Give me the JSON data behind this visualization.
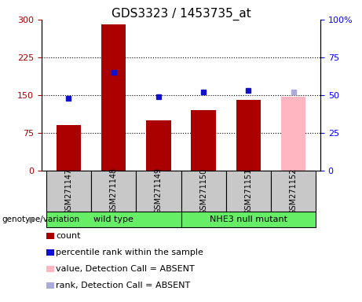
{
  "title": "GDS3323 / 1453735_at",
  "samples": [
    "GSM271147",
    "GSM271148",
    "GSM271149",
    "GSM271150",
    "GSM271151",
    "GSM271152"
  ],
  "counts": [
    90,
    290,
    100,
    120,
    140,
    147
  ],
  "percentiles": [
    48,
    65,
    49,
    52,
    53,
    52
  ],
  "absent_flags": [
    false,
    false,
    false,
    false,
    false,
    true
  ],
  "left_ylim": [
    0,
    300
  ],
  "right_ylim": [
    0,
    100
  ],
  "left_yticks": [
    0,
    75,
    150,
    225,
    300
  ],
  "right_yticks": [
    0,
    25,
    50,
    75,
    100
  ],
  "right_yticklabels": [
    "0",
    "25",
    "50",
    "75",
    "100%"
  ],
  "bar_color_present": "#AA0000",
  "bar_color_absent": "#FFB6C1",
  "dot_color_present": "#1010CC",
  "dot_color_absent": "#AAAADD",
  "group_label_text": "genotype/variation",
  "groups": [
    {
      "label": "wild type",
      "start": 0,
      "end": 2,
      "color": "#66EE66"
    },
    {
      "label": "NHE3 null mutant",
      "start": 3,
      "end": 5,
      "color": "#66EE66"
    }
  ],
  "legend_items": [
    {
      "color": "#AA0000",
      "label": "count"
    },
    {
      "color": "#1010CC",
      "label": "percentile rank within the sample"
    },
    {
      "color": "#FFB6C1",
      "label": "value, Detection Call = ABSENT"
    },
    {
      "color": "#AAAADD",
      "label": "rank, Detection Call = ABSENT"
    }
  ],
  "bg_color": "#C8C8C8",
  "title_fontsize": 11,
  "tick_fontsize": 8,
  "sample_fontsize": 7,
  "legend_fontsize": 8
}
